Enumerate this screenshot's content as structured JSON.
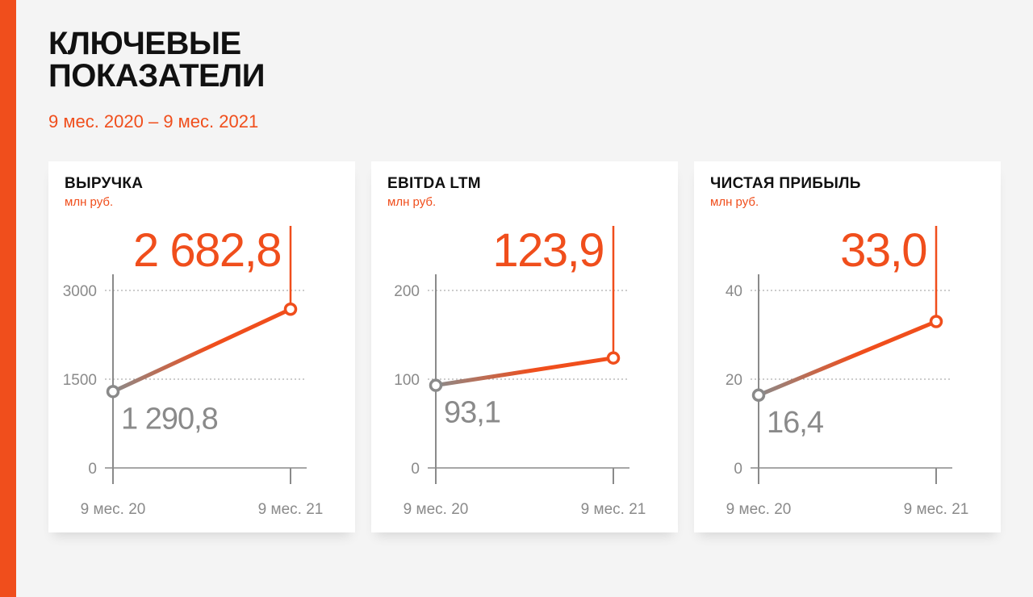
{
  "header": {
    "title": "КЛЮЧЕВЫЕ ПОКАЗАТЕЛИ",
    "subtitle": "9 мес. 2020 – 9 мес. 2021"
  },
  "colors": {
    "accent": "#f04e1c",
    "muted": "#8a8a8a",
    "axis": "#8a8a8a",
    "title": "#111111"
  },
  "chart_data": [
    {
      "type": "line",
      "title": "ВЫРУЧКА",
      "unit": "млн руб.",
      "categories": [
        "9 мес. 20",
        "9 мес. 21"
      ],
      "values": [
        1290.8,
        2682.8
      ],
      "value_labels": [
        "1 290,8",
        "2 682,8"
      ],
      "yticks": [
        0,
        1500,
        3000
      ],
      "ytick_labels": [
        "0",
        "1500",
        "3000"
      ],
      "ylim": [
        0,
        3000
      ],
      "grid": true
    },
    {
      "type": "line",
      "title": "EBITDA LTM",
      "unit": "млн руб.",
      "categories": [
        "9 мес. 20",
        "9 мес. 21"
      ],
      "values": [
        93.1,
        123.9
      ],
      "value_labels": [
        "93,1",
        "123,9"
      ],
      "yticks": [
        0,
        100,
        200
      ],
      "ytick_labels": [
        "0",
        "100",
        "200"
      ],
      "ylim": [
        0,
        200
      ],
      "grid": true
    },
    {
      "type": "line",
      "title": "ЧИСТАЯ ПРИБЫЛЬ",
      "unit": "млн руб.",
      "categories": [
        "9 мес. 20",
        "9 мес. 21"
      ],
      "values": [
        16.4,
        33.0
      ],
      "value_labels": [
        "16,4",
        "33,0"
      ],
      "yticks": [
        0,
        20,
        40
      ],
      "ytick_labels": [
        "0",
        "20",
        "40"
      ],
      "ylim": [
        0,
        40
      ],
      "grid": true
    }
  ]
}
